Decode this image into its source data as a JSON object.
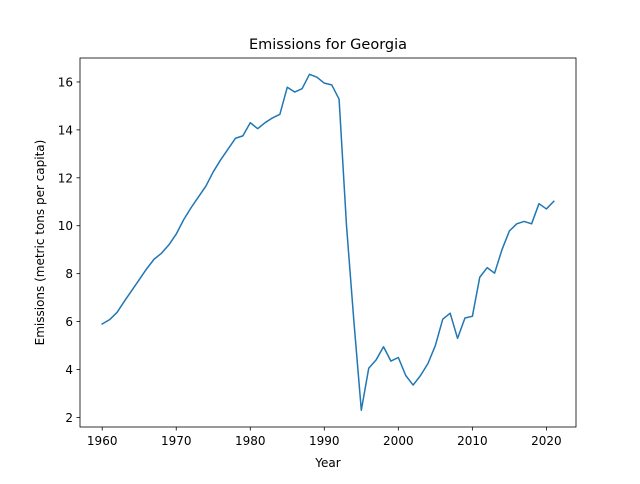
{
  "chart_data": {
    "type": "line",
    "title": "Emissions for Georgia",
    "xlabel": "Year",
    "ylabel": "Emissions (metric tons per capita)",
    "xlim": [
      1957,
      2024
    ],
    "ylim": [
      1.6,
      17.0
    ],
    "xticks": [
      1960,
      1970,
      1980,
      1990,
      2000,
      2010,
      2020
    ],
    "yticks": [
      2,
      4,
      6,
      8,
      10,
      12,
      14,
      16
    ],
    "grid": false,
    "line_color": "#1f77b4",
    "series": [
      {
        "x": [
          1960,
          1961,
          1962,
          1963,
          1964,
          1965,
          1966,
          1967,
          1968,
          1969,
          1970,
          1971,
          1972,
          1973,
          1974,
          1975,
          1976,
          1977,
          1978,
          1979,
          1980,
          1981,
          1982,
          1983,
          1984,
          1985,
          1986,
          1987,
          1988,
          1989,
          1990,
          1991,
          1992,
          1993,
          1994,
          1995,
          1996,
          1997,
          1998,
          1999,
          2000,
          2001,
          2002,
          2003,
          2004,
          2005,
          2006,
          2007,
          2008,
          2009,
          2010,
          2011,
          2012,
          2013,
          2014,
          2015,
          2016,
          2017,
          2018,
          2019,
          2020,
          2021
        ],
        "values": [
          5.9,
          6.08,
          6.38,
          6.85,
          7.3,
          7.75,
          8.2,
          8.6,
          8.85,
          9.2,
          9.65,
          10.25,
          10.75,
          11.2,
          11.65,
          12.25,
          12.75,
          13.2,
          13.65,
          13.75,
          14.3,
          14.05,
          14.3,
          14.5,
          14.65,
          15.78,
          15.58,
          15.72,
          16.32,
          16.2,
          15.95,
          15.88,
          15.28,
          10.0,
          6.0,
          2.3,
          4.05,
          4.4,
          4.95,
          4.35,
          4.5,
          3.75,
          3.35,
          3.75,
          4.25,
          5.0,
          6.1,
          6.35,
          5.3,
          6.15,
          6.22,
          7.85,
          8.25,
          8.02,
          9.0,
          9.78,
          10.08,
          10.18,
          10.08,
          10.92,
          10.7,
          11.02
        ]
      }
    ]
  }
}
